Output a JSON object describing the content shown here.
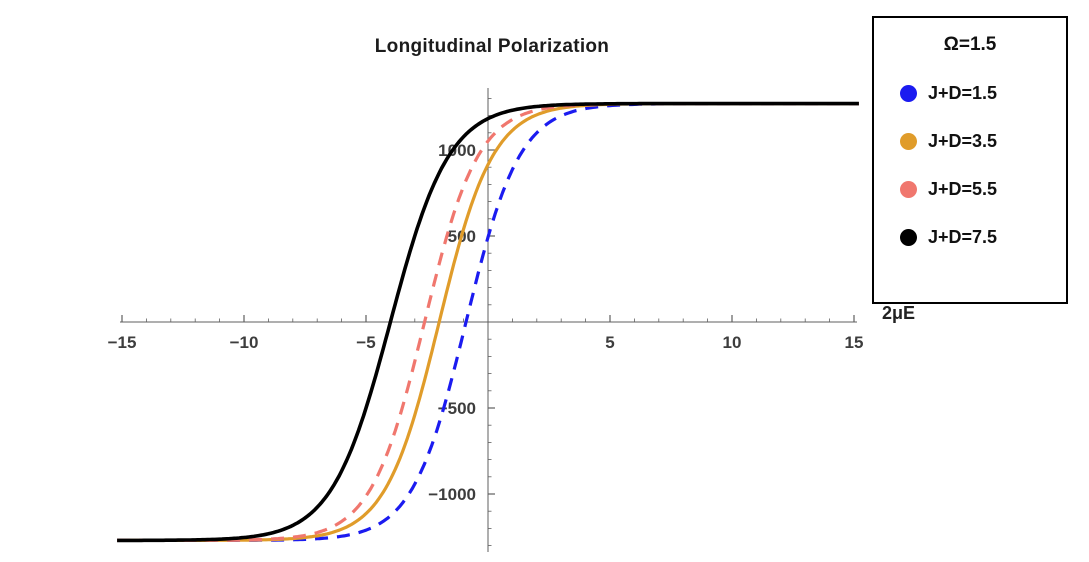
{
  "title": "Longitudinal Polarization",
  "axis": {
    "x_label": "2μE",
    "x_ticks": [
      -15,
      -10,
      -5,
      5,
      10,
      15
    ],
    "y_ticks": [
      -1000,
      -500,
      500,
      1000
    ],
    "x_range": [
      -15,
      15
    ],
    "y_range": [
      -1300,
      1300
    ]
  },
  "legend": {
    "title": "Ω=1.5",
    "position": "top-right",
    "items": [
      {
        "label": "J+D=1.5",
        "color": "#1b1bf0",
        "style": "dashed"
      },
      {
        "label": "J+D=3.5",
        "color": "#e09c2a",
        "style": "solid"
      },
      {
        "label": "J+D=5.5",
        "color": "#f0776e",
        "style": "dashed"
      },
      {
        "label": "J+D=7.5",
        "color": "#000000",
        "style": "solid"
      }
    ]
  },
  "chart_data": {
    "type": "line",
    "title": "Longitudinal Polarization",
    "xlabel": "2μE",
    "ylabel": "",
    "xlim": [
      -15,
      15
    ],
    "ylim": [
      -1300,
      1300
    ],
    "x_ticks": [
      -15,
      -10,
      -5,
      5,
      10,
      15
    ],
    "y_ticks": [
      -1000,
      -500,
      500,
      1000
    ],
    "grid": false,
    "legend_title": "Ω=1.5",
    "legend_position": "top-right",
    "amplitude": 1270,
    "model": "y = amplitude * tanh((x - center)/width)",
    "x": [
      -15,
      -14,
      -13,
      -12,
      -11,
      -10,
      -9,
      -8,
      -7,
      -6,
      -5,
      -4,
      -3,
      -2,
      -1,
      0,
      1,
      2,
      3,
      4,
      5,
      6,
      7,
      8,
      9,
      10,
      11,
      12,
      13,
      14,
      15
    ],
    "series": [
      {
        "name": "J+D=1.5",
        "color": "#1b1bf0",
        "style": "dashed",
        "center": -0.9,
        "width": 2.2,
        "values": [
          -1270,
          -1270,
          -1270,
          -1270,
          -1270,
          -1269,
          -1268,
          -1266,
          -1260,
          -1246,
          -1210,
          -1127,
          -942,
          -587,
          -58,
          492,
          887,
          1100,
          1199,
          1241,
          1258,
          1265,
          1268,
          1269,
          1270,
          1270,
          1270,
          1270,
          1270,
          1270,
          1270
        ]
      },
      {
        "name": "J+D=3.5",
        "color": "#e09c2a",
        "style": "solid",
        "center": -2.0,
        "width": 2.2,
        "values": [
          -1270,
          -1270,
          -1270,
          -1270,
          -1269,
          -1268,
          -1266,
          -1259,
          -1243,
          -1205,
          -1115,
          -915,
          -541,
          0,
          541,
          915,
          1115,
          1205,
          1243,
          1259,
          1266,
          1268,
          1269,
          1270,
          1270,
          1270,
          1270,
          1270,
          1270,
          1270,
          1270
        ]
      },
      {
        "name": "J+D=5.5",
        "color": "#f0776e",
        "style": "dashed",
        "center": -2.6,
        "width": 2.2,
        "values": [
          -1270,
          -1270,
          -1270,
          -1269,
          -1269,
          -1267,
          -1262,
          -1251,
          -1224,
          -1160,
          -1012,
          -714,
          -228,
          338,
          789,
          1051,
          1177,
          1232,
          1255,
          1264,
          1267,
          1269,
          1270,
          1270,
          1270,
          1270,
          1270,
          1270,
          1270,
          1270,
          1270
        ]
      },
      {
        "name": "J+D=7.5",
        "color": "#000000",
        "style": "solid",
        "center": -4.0,
        "width": 2.4,
        "values": [
          -1270,
          -1269,
          -1269,
          -1267,
          -1262,
          -1253,
          -1231,
          -1182,
          -1077,
          -866,
          -500,
          0,
          500,
          866,
          1077,
          1182,
          1231,
          1253,
          1262,
          1267,
          1269,
          1269,
          1270,
          1270,
          1270,
          1270,
          1270,
          1270,
          1270,
          1270,
          1270
        ]
      }
    ]
  }
}
